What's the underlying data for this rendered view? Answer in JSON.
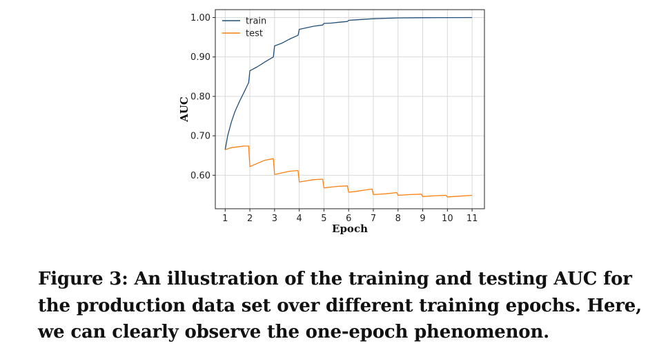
{
  "caption": "Figure 3: An illustration of the training and testing AUC for the production data set over different training epochs. Here, we can clearly observe the one-epoch phenomenon.",
  "chart_data": {
    "type": "line",
    "xlabel": "Epoch",
    "ylabel": "AUC",
    "xlim": [
      0.6,
      11.5
    ],
    "ylim": [
      0.515,
      1.02
    ],
    "xticks": [
      1,
      2,
      3,
      4,
      5,
      6,
      7,
      8,
      9,
      10,
      11
    ],
    "yticks": [
      0.6,
      0.7,
      0.8,
      0.9,
      1.0
    ],
    "ytick_labels": [
      "0.60",
      "0.70",
      "0.80",
      "0.90",
      "1.00"
    ],
    "grid": true,
    "legend_position": "top-left",
    "series": [
      {
        "name": "train",
        "color": "#1f4e79",
        "x": [
          1.0,
          1.1,
          1.25,
          1.4,
          1.6,
          1.8,
          1.95,
          2.0,
          2.3,
          2.6,
          2.95,
          3.0,
          3.3,
          3.6,
          3.95,
          4.0,
          4.3,
          4.6,
          4.95,
          5.0,
          5.3,
          5.6,
          5.95,
          6.0,
          6.5,
          7.0,
          7.5,
          8.0,
          9.0,
          10.0,
          11.0
        ],
        "y": [
          0.665,
          0.7,
          0.735,
          0.762,
          0.79,
          0.815,
          0.835,
          0.865,
          0.875,
          0.887,
          0.9,
          0.928,
          0.935,
          0.945,
          0.955,
          0.97,
          0.974,
          0.978,
          0.981,
          0.985,
          0.986,
          0.988,
          0.99,
          0.993,
          0.995,
          0.997,
          0.998,
          0.999,
          0.9995,
          0.9997,
          0.9999
        ]
      },
      {
        "name": "test",
        "color": "#ff7f0e",
        "x": [
          1.0,
          1.25,
          1.5,
          1.75,
          1.95,
          2.0,
          2.3,
          2.6,
          2.95,
          3.0,
          3.3,
          3.6,
          3.95,
          4.0,
          4.3,
          4.6,
          4.95,
          5.0,
          5.3,
          5.6,
          5.95,
          6.0,
          6.3,
          6.6,
          6.95,
          7.0,
          7.5,
          7.95,
          8.0,
          8.5,
          8.95,
          9.0,
          9.5,
          9.95,
          10.0,
          10.5,
          11.0
        ],
        "y": [
          0.665,
          0.67,
          0.672,
          0.674,
          0.674,
          0.622,
          0.63,
          0.638,
          0.642,
          0.602,
          0.606,
          0.61,
          0.612,
          0.583,
          0.586,
          0.589,
          0.59,
          0.568,
          0.57,
          0.572,
          0.573,
          0.557,
          0.559,
          0.562,
          0.565,
          0.551,
          0.553,
          0.556,
          0.549,
          0.551,
          0.552,
          0.546,
          0.548,
          0.549,
          0.545,
          0.547,
          0.549
        ]
      }
    ]
  }
}
